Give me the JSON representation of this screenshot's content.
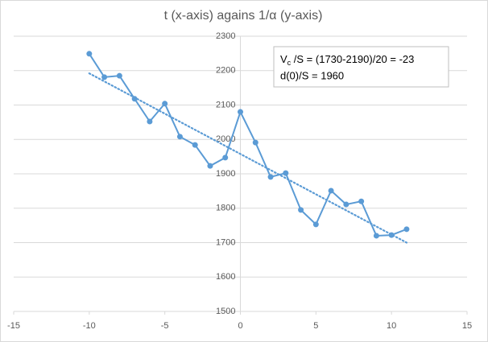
{
  "chart_data": {
    "type": "scatter",
    "title": "t (x-axis) agains 1/α (y-axis)",
    "series": [
      {
        "color": "#5b9bd5",
        "x": [
          -10,
          -9,
          -8,
          -7,
          -6,
          -5,
          -4,
          -3,
          -2,
          -1,
          0,
          1,
          2,
          3,
          4,
          5,
          6,
          7,
          8,
          9,
          10,
          11
        ],
        "values": [
          2249,
          2181,
          2185,
          2118,
          2052,
          2104,
          2008,
          1984,
          1923,
          1947,
          2080,
          1991,
          1891,
          1902,
          1795,
          1753,
          1851,
          1811,
          1820,
          1720,
          1722,
          1739
        ]
      }
    ],
    "trendline": {
      "color": "#5b9bd5",
      "x": [
        -10,
        11
      ],
      "values": [
        2192,
        1700
      ]
    },
    "xlim": [
      -15,
      15
    ],
    "xticks": [
      -15,
      -10,
      -5,
      0,
      5,
      10,
      15
    ],
    "ylim": [
      1500,
      2300
    ],
    "yticks": [
      1500,
      1600,
      1700,
      1800,
      1900,
      2000,
      2100,
      2200,
      2300
    ],
    "grid": true,
    "annotation": [
      {
        "main": "V",
        "sub": "c",
        "rest": " /S = (1730-2190)/20  = -23"
      },
      {
        "main": "d(0)/S = 1960"
      }
    ]
  }
}
